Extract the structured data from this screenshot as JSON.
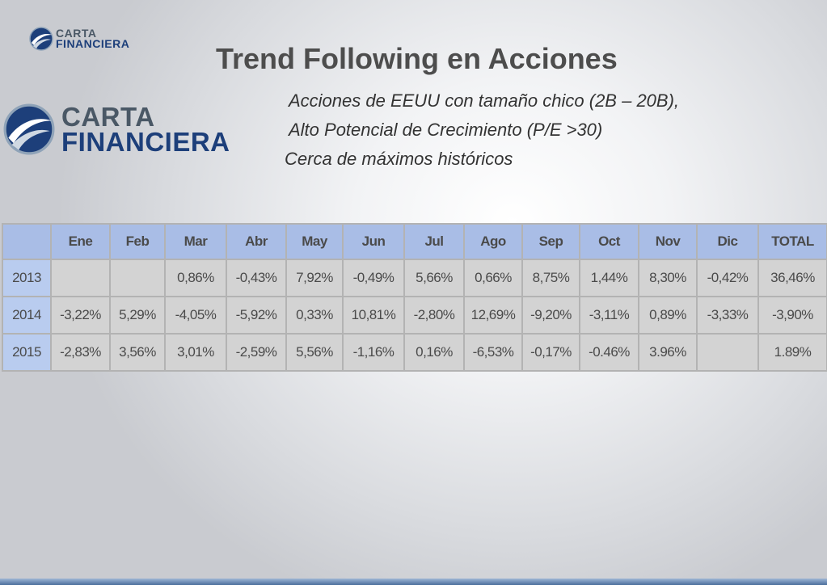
{
  "logo": {
    "line1": "CARTA",
    "line2": "FINANCIERA"
  },
  "title": "Trend Following en Acciones",
  "bullets": [
    "Acciones de EEUU con tamaño chico  (2B – 20B),",
    "Alto Potencial de Crecimiento (P/E >30)",
    "Cerca de máximos históricos"
  ],
  "table": {
    "headers": [
      "",
      "Ene",
      "Feb",
      "Mar",
      "Abr",
      "May",
      "Jun",
      "Jul",
      "Ago",
      "Sep",
      "Oct",
      "Nov",
      "Dic",
      "TOTAL"
    ],
    "rows": [
      [
        "2013",
        "",
        "",
        "0,86%",
        "-0,43%",
        "7,92%",
        "-0,49%",
        "5,66%",
        "0,66%",
        "8,75%",
        "1,44%",
        "8,30%",
        "-0,42%",
        "36,46%"
      ],
      [
        "2014",
        "-3,22%",
        "5,29%",
        "-4,05%",
        "-5,92%",
        "0,33%",
        "10,81%",
        "-2,80%",
        "12,69%",
        "-9,20%",
        "-3,11%",
        "0,89%",
        "-3,33%",
        "-3,90%"
      ],
      [
        "2015",
        "-2,83%",
        "3,56%",
        "3,01%",
        "-2,59%",
        "5,56%",
        "-1,16%",
        "0,16%",
        "-6,53%",
        "-0,17%",
        "-0.46%",
        "3.96%",
        "",
        "1.89%"
      ]
    ]
  },
  "colors": {
    "header_bg": "#a9bde6",
    "year_bg": "#b9ccef",
    "cell_bg": "#d3d3d3",
    "brand_blue": "#1d3f7a",
    "brand_gray": "#4a5866"
  }
}
